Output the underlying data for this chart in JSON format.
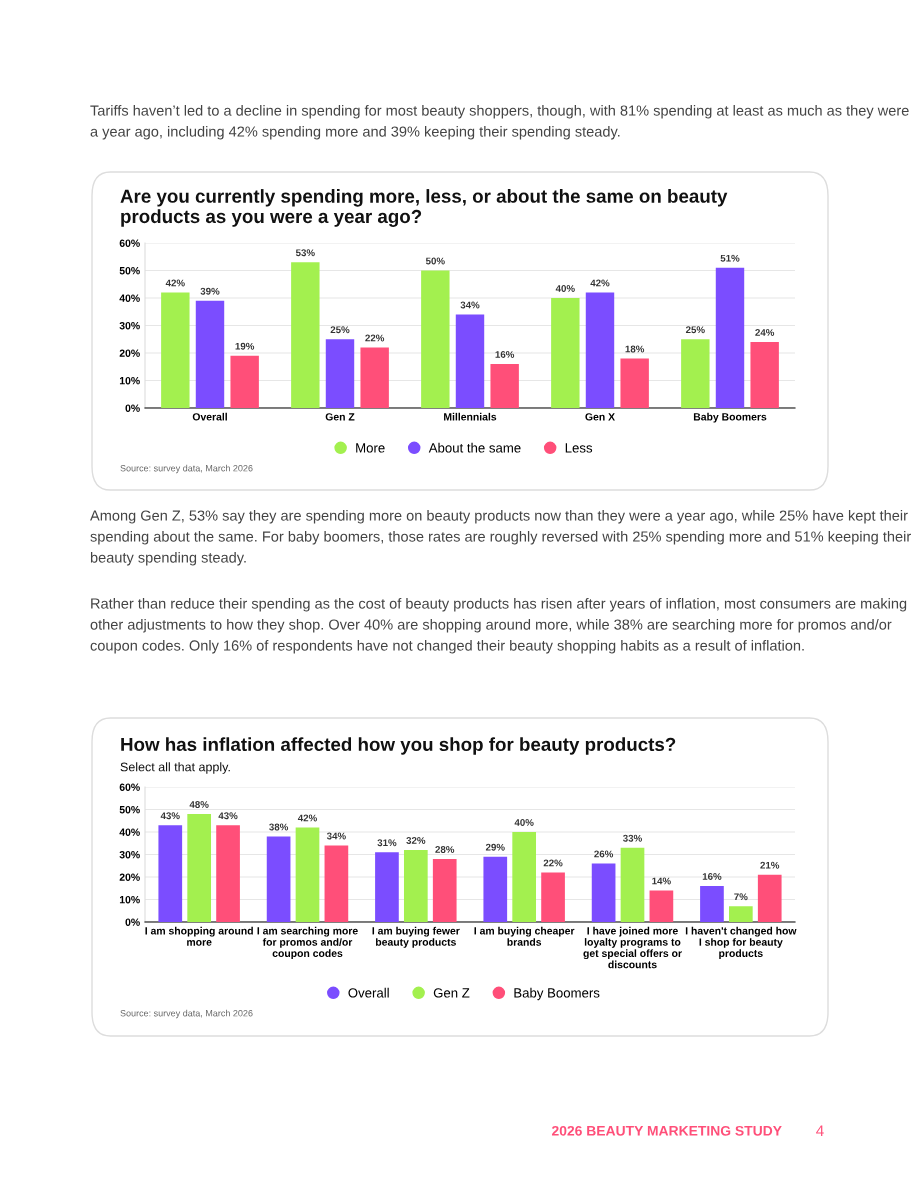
{
  "chart_data": [
    {
      "type": "bar",
      "title": "Are you currently spending more, less, or about the same on beauty\nproducts as you were a year ago?",
      "categories": [
        "Overall",
        "Gen Z",
        "Millennials",
        "Gen X",
        "Baby Boomers"
      ],
      "series": [
        {
          "name": "More",
          "color": "#a3f04f",
          "values": [
            42,
            53,
            50,
            40,
            25
          ],
          "value_labels": [
            "42%",
            "53%",
            "50%",
            "40%",
            "25%"
          ]
        },
        {
          "name": "About the same",
          "color": "#7b4dff",
          "values": [
            39,
            25,
            34,
            42,
            51
          ],
          "value_labels": [
            "39%",
            "25%",
            "34%",
            "42%",
            "51%"
          ]
        },
        {
          "name": "Less",
          "color": "#ff4f79",
          "values": [
            19,
            22,
            16,
            18,
            24
          ],
          "value_labels": [
            "19%",
            "22%",
            "16%",
            "18%",
            "24%"
          ]
        }
      ],
      "ylim": [
        0,
        60
      ],
      "yticks": [
        {
          "value": 0,
          "label": "0%"
        },
        {
          "value": 10,
          "label": "10%"
        },
        {
          "value": 20,
          "label": "20%"
        },
        {
          "value": 30,
          "label": "30%"
        },
        {
          "value": 40,
          "label": "40%"
        },
        {
          "value": 50,
          "label": "50%"
        },
        {
          "value": 60,
          "label": "60%"
        }
      ],
      "grid": "y",
      "legend": "bottom",
      "annotations": [
        "Tariffs haven’t led to a decline in spending for most beauty shoppers, though, with 81% spending at least as much as they were a year ago, including 42% spending more and 39% keeping their spending steady.",
        "Source: survey data, March 2026"
      ]
    },
    {
      "type": "bar",
      "title": "How has inflation affected how you shop for beauty products?",
      "subtitle": "Select all that apply.",
      "categories": [
        "I am shopping around\nmore",
        "I am searching more\nfor promos and/or\ncoupon codes",
        "I am buying fewer\nbeauty products",
        "I am buying cheaper\nbrands",
        "I have joined more\nloyalty programs to\nget special offers or\ndiscounts",
        "I haven't changed how\nI shop for beauty\nproducts"
      ],
      "series": [
        {
          "name": "Overall",
          "color": "#7b4dff",
          "values": [
            43,
            38,
            31,
            29,
            26,
            16
          ],
          "value_labels": [
            "43%",
            "38%",
            "31%",
            "29%",
            "26%",
            "16%"
          ]
        },
        {
          "name": "Gen Z",
          "color": "#a3f04f",
          "values": [
            48,
            42,
            32,
            40,
            33,
            7
          ],
          "value_labels": [
            "48%",
            "42%",
            "32%",
            "40%",
            "33%",
            "7%"
          ]
        },
        {
          "name": "Baby Boomers",
          "color": "#ff4f79",
          "values": [
            43,
            34,
            28,
            22,
            14,
            21
          ],
          "value_labels": [
            "43%",
            "34%",
            "28%",
            "22%",
            "14%",
            "21%"
          ]
        }
      ],
      "ylim": [
        0,
        60
      ],
      "yticks": [
        {
          "value": 0,
          "label": "0%"
        },
        {
          "value": 10,
          "label": "10%"
        },
        {
          "value": 20,
          "label": "20%"
        },
        {
          "value": 30,
          "label": "30%"
        },
        {
          "value": 40,
          "label": "40%"
        },
        {
          "value": 50,
          "label": "50%"
        },
        {
          "value": 60,
          "label": "60%"
        }
      ],
      "grid": "y",
      "legend": "bottom",
      "annotations": [
        "Among Gen Z, 53% say they are spending more on beauty products now than they were a year ago, while 25% have kept their spending about the same. For baby boomers, those rates are roughly reversed with 25% spending more and 51% keeping their beauty spending steady.",
        "Rather than reduce their spending as the cost of beauty products has risen after years of inflation, most consumers are making other adjustments to how they shop. Over 40% are shopping around more, while 38% are searching more for promos and/or coupon codes. Only 16% of respondents have not changed their beauty shopping habits as a result of inflation.",
        "Source: survey data, March 2026",
        "2026 BEAUTY MARKETING STUDY",
        "4"
      ]
    }
  ]
}
